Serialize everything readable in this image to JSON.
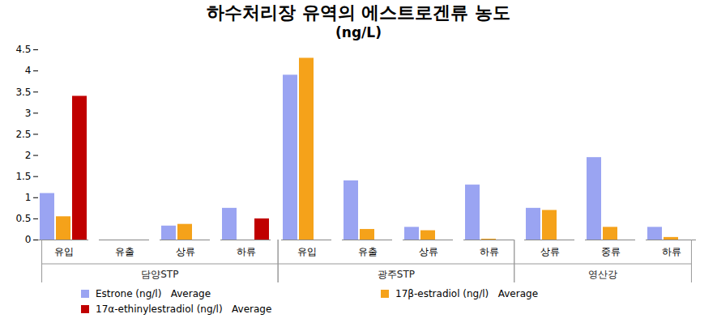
{
  "chart_data": {
    "type": "bar",
    "title": "하수처리장 유역의 에스트로겐류 농도",
    "subtitle": "(ng/L)",
    "categories": [
      "유입",
      "유출",
      "상류",
      "하류",
      "유입",
      "유출",
      "상류",
      "하류",
      "상류",
      "중류",
      "하류"
    ],
    "groups": [
      "담양STP",
      "담양STP",
      "담양STP",
      "담양STP",
      "광주STP",
      "광주STP",
      "광주STP",
      "광주STP",
      "영산강",
      "영산강",
      "영산강"
    ],
    "series": [
      {
        "name": "Estrone (ng/l)   Average",
        "color": "#9aa4f2",
        "values": [
          1.1,
          0,
          0.33,
          0.75,
          3.9,
          1.4,
          0.3,
          1.3,
          0.75,
          1.95,
          0.3
        ]
      },
      {
        "name": "17β-estradiol (ng/l)   Average",
        "color": "#f5a21a",
        "values": [
          0.55,
          0,
          0.37,
          0,
          4.3,
          0.25,
          0.22,
          0.02,
          0.7,
          0.3,
          0.06
        ]
      },
      {
        "name": "17α-ethinylestradiol (ng/l)   Average",
        "color": "#c00000",
        "values": [
          3.4,
          0,
          0,
          0.5,
          0,
          0,
          0,
          0,
          0,
          0,
          0
        ]
      }
    ],
    "ylim": [
      0,
      4.5
    ],
    "yticks": [
      0,
      0.5,
      1,
      1.5,
      2,
      2.5,
      3,
      3.5,
      4,
      4.5
    ],
    "grid": false,
    "legend": "bottom"
  }
}
